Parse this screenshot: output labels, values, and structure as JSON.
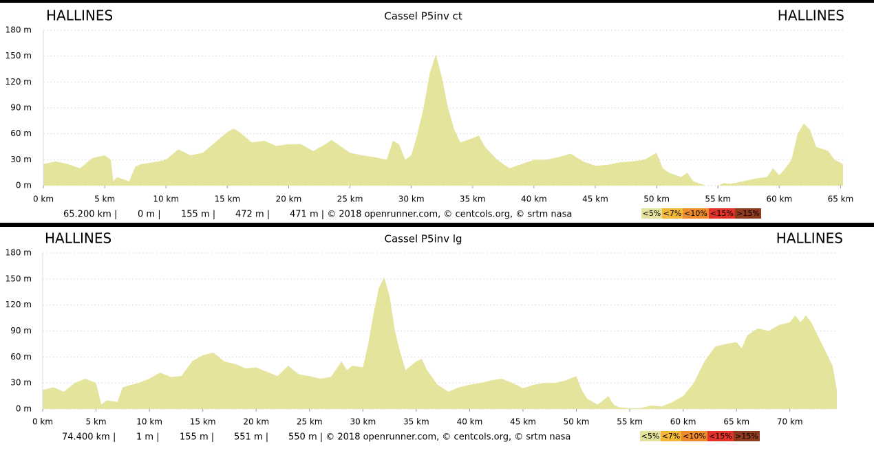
{
  "chart_data": [
    {
      "type": "area",
      "header_left": "HALLINES",
      "title": "Cassel P5inv ct",
      "header_right": "HALLINES",
      "color": "#e4e49c",
      "x": [
        0,
        1,
        2,
        3,
        4,
        5,
        5.5,
        5.7,
        6,
        7,
        7.5,
        8,
        9,
        10,
        11,
        12,
        13,
        14,
        15,
        15.5,
        16,
        17,
        18,
        19,
        20,
        21,
        22,
        23,
        23.5,
        24,
        25,
        26,
        27,
        28,
        28.5,
        29,
        29.5,
        30,
        30.5,
        31,
        31.5,
        32,
        32.5,
        33,
        33.5,
        34,
        35,
        35.5,
        36,
        37,
        38,
        39,
        40,
        41,
        42,
        43,
        44,
        45,
        46,
        47,
        48,
        49,
        50,
        50.5,
        51,
        52,
        52.5,
        53,
        54,
        55,
        55.5,
        56,
        57,
        58,
        59,
        59.5,
        60,
        60.5,
        61,
        61.5,
        62,
        62.5,
        63,
        64,
        64.5,
        65.2
      ],
      "values": [
        25,
        28,
        25,
        20,
        32,
        35,
        30,
        5,
        10,
        5,
        22,
        25,
        27,
        30,
        42,
        35,
        38,
        50,
        62,
        66,
        62,
        50,
        52,
        46,
        48,
        48,
        40,
        48,
        53,
        48,
        38,
        35,
        33,
        30,
        52,
        48,
        30,
        35,
        60,
        90,
        130,
        152,
        125,
        90,
        65,
        50,
        55,
        58,
        45,
        30,
        20,
        25,
        30,
        30,
        33,
        37,
        28,
        23,
        24,
        27,
        28,
        30,
        38,
        20,
        15,
        10,
        15,
        5,
        0,
        0,
        3,
        2,
        5,
        8,
        10,
        20,
        12,
        20,
        30,
        60,
        72,
        65,
        45,
        40,
        30,
        25
      ],
      "xlim": [
        0,
        65.2
      ],
      "ylim": [
        0,
        180
      ],
      "xticks": [
        {
          "value": 0,
          "label": "0 km"
        },
        {
          "value": 5,
          "label": "5 km"
        },
        {
          "value": 10,
          "label": "10 km"
        },
        {
          "value": 15,
          "label": "15 km"
        },
        {
          "value": 20,
          "label": "20 km"
        },
        {
          "value": 25,
          "label": "25 km"
        },
        {
          "value": 30,
          "label": "30 km"
        },
        {
          "value": 35,
          "label": "35 km"
        },
        {
          "value": 40,
          "label": "40 km"
        },
        {
          "value": 45,
          "label": "45 km"
        },
        {
          "value": 50,
          "label": "50 km"
        },
        {
          "value": 55,
          "label": "55 km"
        },
        {
          "value": 60,
          "label": "60 km"
        },
        {
          "value": 65,
          "label": "65 km"
        }
      ],
      "yticks": [
        {
          "value": 0,
          "label": "0 m"
        },
        {
          "value": 30,
          "label": "30 m"
        },
        {
          "value": 60,
          "label": "60 m"
        },
        {
          "value": 90,
          "label": "90 m"
        },
        {
          "value": 120,
          "label": "120 m"
        },
        {
          "value": 150,
          "label": "150 m"
        },
        {
          "value": 180,
          "label": "180 m"
        }
      ],
      "grid": true,
      "stats": [
        "65.200 km |",
        "0 m |",
        "155 m |",
        "472 m |",
        "471 m | © 2018 openrunner.com, © centcols.org, © srtm nasa"
      ],
      "legend": [
        {
          "label": "<5%",
          "color": "#e3e29d"
        },
        {
          "label": "<7%",
          "color": "#f2b938"
        },
        {
          "label": "<10%",
          "color": "#ee8a2a"
        },
        {
          "label": "<15%",
          "color": "#e2322a"
        },
        {
          "label": ">15%",
          "color": "#8f3a1e"
        }
      ]
    },
    {
      "type": "area",
      "header_left": "HALLINES",
      "title": "Cassel P5inv lg",
      "header_right": "HALLINES",
      "color": "#e4e49c",
      "x": [
        0,
        1,
        2,
        3,
        4,
        5,
        5.5,
        6,
        7,
        7.5,
        8,
        9,
        10,
        11,
        12,
        13,
        14,
        15,
        16,
        17,
        18,
        19,
        20,
        21,
        22,
        23,
        24,
        25,
        26,
        27,
        28,
        28.5,
        29,
        30,
        30.5,
        31,
        31.5,
        32,
        32.5,
        33,
        33.5,
        34,
        35,
        35.5,
        36,
        37,
        38,
        39,
        40,
        41,
        42,
        43,
        44,
        45,
        46,
        47,
        48,
        49,
        50,
        50.5,
        51,
        52,
        53,
        53.5,
        54,
        55,
        56,
        57,
        58,
        59,
        60,
        61,
        62,
        63,
        64,
        65,
        65.5,
        66,
        67,
        68,
        69,
        70,
        70.5,
        71,
        71.5,
        72,
        73,
        74,
        74.4
      ],
      "values": [
        22,
        25,
        20,
        30,
        35,
        30,
        5,
        10,
        8,
        25,
        27,
        30,
        35,
        42,
        37,
        38,
        55,
        62,
        65,
        55,
        52,
        47,
        48,
        43,
        38,
        50,
        40,
        38,
        35,
        37,
        55,
        45,
        50,
        48,
        75,
        110,
        140,
        152,
        130,
        90,
        65,
        45,
        55,
        58,
        45,
        28,
        20,
        25,
        28,
        30,
        33,
        35,
        30,
        24,
        28,
        30,
        30,
        33,
        38,
        22,
        12,
        5,
        15,
        5,
        2,
        1,
        1,
        4,
        3,
        8,
        15,
        30,
        55,
        72,
        75,
        77,
        70,
        85,
        93,
        90,
        97,
        100,
        108,
        100,
        108,
        100,
        75,
        50,
        22
      ],
      "xlim": [
        0,
        74.4
      ],
      "ylim": [
        0,
        180
      ],
      "xticks": [
        {
          "value": 0,
          "label": "0 km"
        },
        {
          "value": 5,
          "label": "5 km"
        },
        {
          "value": 10,
          "label": "10 km"
        },
        {
          "value": 15,
          "label": "15 km"
        },
        {
          "value": 20,
          "label": "20 km"
        },
        {
          "value": 25,
          "label": "25 km"
        },
        {
          "value": 30,
          "label": "30 km"
        },
        {
          "value": 35,
          "label": "35 km"
        },
        {
          "value": 40,
          "label": "40 km"
        },
        {
          "value": 45,
          "label": "45 km"
        },
        {
          "value": 50,
          "label": "50 km"
        },
        {
          "value": 55,
          "label": "55 km"
        },
        {
          "value": 60,
          "label": "60 km"
        },
        {
          "value": 65,
          "label": "65 km"
        },
        {
          "value": 70,
          "label": "70 km"
        }
      ],
      "yticks": [
        {
          "value": 0,
          "label": "0 m"
        },
        {
          "value": 30,
          "label": "30 m"
        },
        {
          "value": 60,
          "label": "60 m"
        },
        {
          "value": 90,
          "label": "90 m"
        },
        {
          "value": 120,
          "label": "120 m"
        },
        {
          "value": 150,
          "label": "150 m"
        },
        {
          "value": 180,
          "label": "180 m"
        }
      ],
      "grid": true,
      "stats": [
        "74.400 km |",
        "1 m |",
        "155 m |",
        "551 m |",
        "550 m | © 2018 openrunner.com, © centcols.org, © srtm nasa"
      ],
      "legend": [
        {
          "label": "<5%",
          "color": "#e3e29d"
        },
        {
          "label": "<7%",
          "color": "#f2b938"
        },
        {
          "label": "<10%",
          "color": "#ee8a2a"
        },
        {
          "label": "<15%",
          "color": "#e2322a"
        },
        {
          "label": ">15%",
          "color": "#8f3a1e"
        }
      ]
    }
  ]
}
